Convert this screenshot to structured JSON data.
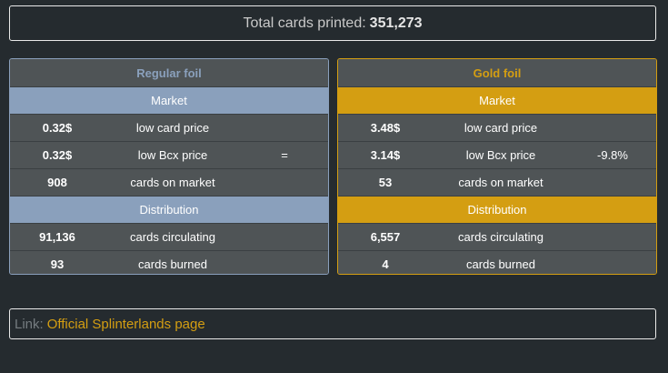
{
  "total": {
    "label": "Total cards printed:",
    "value": "351,273"
  },
  "regular": {
    "title": "Regular foil",
    "market_label": "Market",
    "distribution_label": "Distribution",
    "rows_market": [
      {
        "value": "0.32$",
        "label": "low card price",
        "change": ""
      },
      {
        "value": "0.32$",
        "label": "low Bcx price",
        "change": "="
      },
      {
        "value": "908",
        "label": "cards on market",
        "change": ""
      }
    ],
    "rows_distribution": [
      {
        "value": "91,136",
        "label": "cards circulating",
        "change": ""
      },
      {
        "value": "93",
        "label": "cards burned",
        "change": ""
      }
    ]
  },
  "gold": {
    "title": "Gold foil",
    "market_label": "Market",
    "distribution_label": "Distribution",
    "rows_market": [
      {
        "value": "3.48$",
        "label": "low card price",
        "change": ""
      },
      {
        "value": "3.14$",
        "label": "low Bcx price",
        "change": "-9.8%"
      },
      {
        "value": "53",
        "label": "cards on market",
        "change": ""
      }
    ],
    "rows_distribution": [
      {
        "value": "6,557",
        "label": "cards circulating",
        "change": ""
      },
      {
        "value": "4",
        "label": "cards burned",
        "change": ""
      }
    ]
  },
  "link": {
    "prefix": "Link:",
    "text": "Official Splinterlands page"
  },
  "colors": {
    "regular_accent": "#8aa0bc",
    "gold_accent": "#d49e12",
    "background": "#252b2f",
    "row_bg": "#4f5456"
  }
}
